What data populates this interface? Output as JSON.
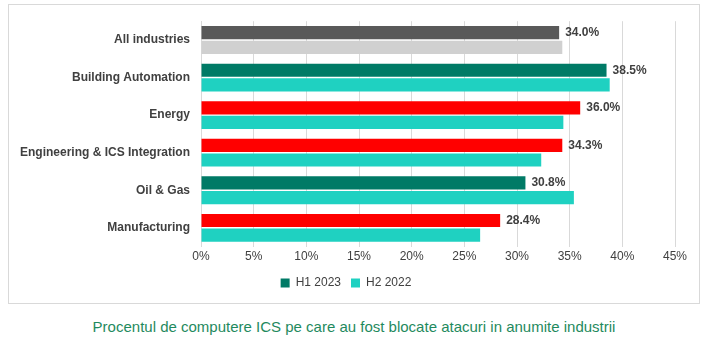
{
  "chart_data": {
    "type": "bar",
    "orientation": "horizontal",
    "caption": "Procentul de computere ICS pe care au fost blocate atacuri in anumite industrii",
    "categories": [
      "All industries",
      "Building Automation",
      "Energy",
      "Engineering & ICS Integration",
      "Oil & Gas",
      "Manufacturing"
    ],
    "series": [
      {
        "name": "H1 2023",
        "color": "#007a66",
        "colors": [
          "#595959",
          "#007a66",
          "#ff0000",
          "#ff0000",
          "#007a66",
          "#ff0000"
        ],
        "values": [
          34.0,
          38.5,
          36.0,
          34.3,
          30.8,
          28.4
        ],
        "data_labels": true,
        "value_labels": [
          "34.0%",
          "38.5%",
          "36.0%",
          "34.3%",
          "30.8%",
          "28.4%"
        ]
      },
      {
        "name": "H2 2022",
        "color": "#1fd1c1",
        "colors": [
          "#d0d0d0",
          "#1fd1c1",
          "#1fd1c1",
          "#1fd1c1",
          "#1fd1c1",
          "#1fd1c1"
        ],
        "values": [
          34.3,
          38.8,
          34.4,
          32.3,
          35.4,
          26.5
        ]
      }
    ],
    "xlim": [
      0,
      45
    ],
    "xticks": [
      {
        "value": 0,
        "label": "0%"
      },
      {
        "value": 5,
        "label": "5%"
      },
      {
        "value": 10,
        "label": "10%"
      },
      {
        "value": 15,
        "label": "15%"
      },
      {
        "value": 20,
        "label": "20%"
      },
      {
        "value": 25,
        "label": "25%"
      },
      {
        "value": 30,
        "label": "30%"
      },
      {
        "value": 35,
        "label": "35%"
      },
      {
        "value": 40,
        "label": "40%"
      },
      {
        "value": 45,
        "label": "45%"
      }
    ],
    "grid": true,
    "legend": "bottom"
  }
}
